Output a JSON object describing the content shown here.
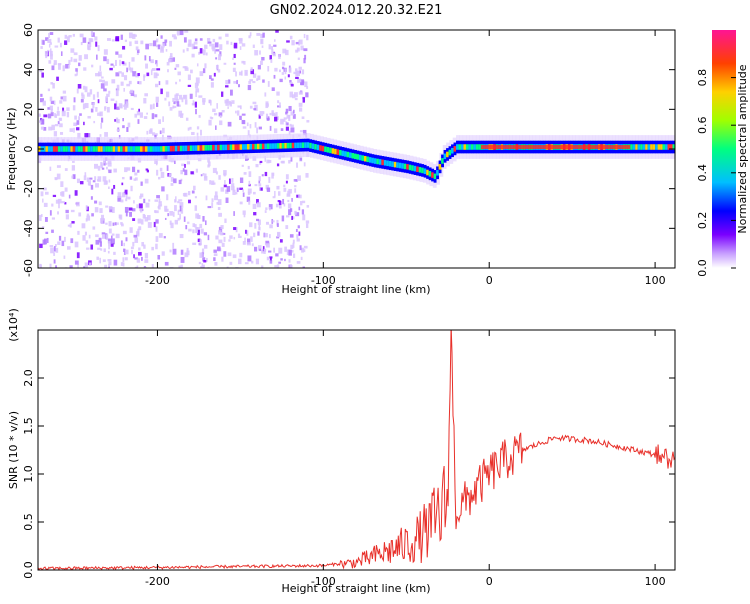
{
  "title": "GN02.2024.012.20.32.E21",
  "colors": {
    "snr_line": "#e8302a",
    "axis": "#000000",
    "colormap": [
      "#ffffff",
      "#c8a0ff",
      "#7a00ff",
      "#0000ff",
      "#00bfff",
      "#00ff80",
      "#a0ff00",
      "#ffd000",
      "#ff4000",
      "#ff1493"
    ]
  },
  "chart_data": [
    {
      "type": "heatmap",
      "xlabel": "Height of straight line (km)",
      "ylabel": "Frequency (Hz)",
      "xlim": [
        -272,
        112
      ],
      "ylim": [
        -60,
        60
      ],
      "xticks": [
        -200,
        -100,
        0,
        100
      ],
      "yticks": [
        60,
        40,
        20,
        0,
        -20,
        -40,
        -60
      ],
      "grid": false,
      "ridge": [
        {
          "x": -272,
          "y": 0
        },
        {
          "x": -200,
          "y": 0
        },
        {
          "x": -150,
          "y": 1
        },
        {
          "x": -110,
          "y": 2
        },
        {
          "x": -90,
          "y": -2
        },
        {
          "x": -70,
          "y": -6
        },
        {
          "x": -50,
          "y": -9
        },
        {
          "x": -40,
          "y": -11
        },
        {
          "x": -33,
          "y": -14
        },
        {
          "x": -28,
          "y": -4
        },
        {
          "x": -20,
          "y": 1
        },
        {
          "x": 0,
          "y": 1
        },
        {
          "x": 50,
          "y": 1
        },
        {
          "x": 112,
          "y": 1
        }
      ],
      "colorbar": {
        "label": "Normalized spectral amplitude",
        "ticks": [
          "0.0",
          "0.2",
          "0.4",
          "0.6",
          "0.8"
        ]
      }
    },
    {
      "type": "line",
      "xlabel": "Height of straight line (km)",
      "ylabel": "SNR (10 * v/v)",
      "multiplier": "(x10⁴)",
      "xlim": [
        -272,
        112
      ],
      "ylim": [
        0,
        2.5
      ],
      "xticks": [
        -200,
        -100,
        0,
        100
      ],
      "yticks": [
        "0.0",
        "0.5",
        "1.0",
        "1.5",
        "2.0"
      ],
      "grid": false,
      "series": [
        {
          "color": "#e8302a",
          "points": [
            {
              "x": -272,
              "y": 0.01
            },
            {
              "x": -200,
              "y": 0.02
            },
            {
              "x": -150,
              "y": 0.03
            },
            {
              "x": -100,
              "y": 0.04
            },
            {
              "x": -80,
              "y": 0.08
            },
            {
              "x": -60,
              "y": 0.2
            },
            {
              "x": -45,
              "y": 0.3
            },
            {
              "x": -35,
              "y": 0.45
            },
            {
              "x": -25,
              "y": 0.7
            },
            {
              "x": -23,
              "y": 2.5
            },
            {
              "x": -20,
              "y": 0.6
            },
            {
              "x": -10,
              "y": 0.8
            },
            {
              "x": 0,
              "y": 1.0
            },
            {
              "x": 10,
              "y": 1.15
            },
            {
              "x": 20,
              "y": 1.25
            },
            {
              "x": 40,
              "y": 1.38
            },
            {
              "x": 60,
              "y": 1.35
            },
            {
              "x": 80,
              "y": 1.28
            },
            {
              "x": 100,
              "y": 1.2
            },
            {
              "x": 112,
              "y": 1.13
            }
          ]
        }
      ]
    }
  ]
}
